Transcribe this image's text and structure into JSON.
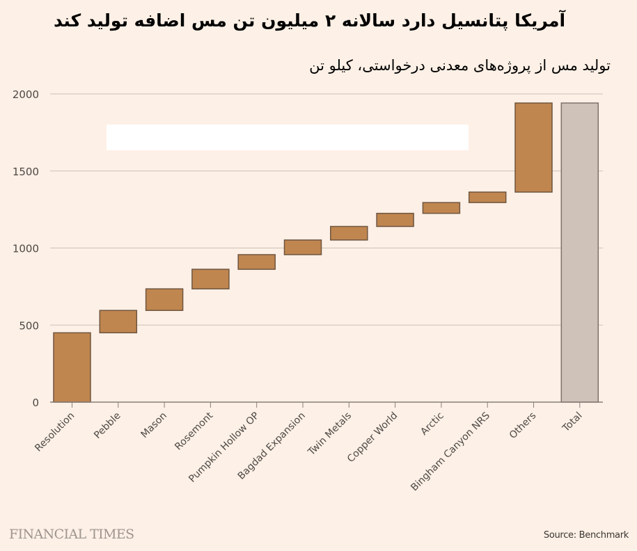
{
  "header": {
    "title": "آمریکا پتانسیل دارد سالانه ۲ میلیون تن مس اضافه تولید کند",
    "subtitle": "تولید مس از پروژه‌های معدنی درخواستی، کیلو تن"
  },
  "footer": {
    "logo": "FINANCIAL TIMES",
    "source": "Source: Benchmark"
  },
  "colors": {
    "background": "#fdf0e6",
    "bar_fill": "#c0864f",
    "bar_stroke": "#6e5540",
    "total_fill": "#cfc2b9",
    "total_stroke": "#7d716b",
    "gridline": "#cdbfb4",
    "axis": "#8a7f78"
  },
  "chart_data": {
    "type": "waterfall",
    "title": "آمریکا پتانسیل دارد سالانه ۲ میلیون تن مس اضافه تولید کند",
    "subtitle": "تولید مس از پروژه‌های معدنی درخواستی، کیلو تن",
    "xlabel": "",
    "ylabel": "",
    "ylim": [
      0,
      2000
    ],
    "yticks": [
      0,
      500,
      1000,
      1500,
      2000
    ],
    "grid": true,
    "legend": null,
    "categories": [
      "Resolution",
      "Pebble",
      "Mason",
      "Rosemont",
      "Pumpkin Hollow OP",
      "Bagdad Expansion",
      "Twin Metals",
      "Copper World",
      "Arctic",
      "Bingham Canyon NRS",
      "Others",
      "Total"
    ],
    "values": [
      450,
      145,
      140,
      127,
      95,
      95,
      88,
      85,
      70,
      68,
      578,
      1941
    ],
    "bars": [
      {
        "label": "Resolution",
        "start": 0,
        "end": 450
      },
      {
        "label": "Pebble",
        "start": 450,
        "end": 595
      },
      {
        "label": "Mason",
        "start": 595,
        "end": 735
      },
      {
        "label": "Rosemont",
        "start": 735,
        "end": 862
      },
      {
        "label": "Pumpkin Hollow OP",
        "start": 862,
        "end": 957
      },
      {
        "label": "Bagdad Expansion",
        "start": 957,
        "end": 1052
      },
      {
        "label": "Twin Metals",
        "start": 1052,
        "end": 1140
      },
      {
        "label": "Copper World",
        "start": 1140,
        "end": 1225
      },
      {
        "label": "Arctic",
        "start": 1225,
        "end": 1295
      },
      {
        "label": "Bingham Canyon NRS",
        "start": 1295,
        "end": 1363
      },
      {
        "label": "Others",
        "start": 1363,
        "end": 1941
      },
      {
        "label": "Total",
        "start": 0,
        "end": 1941,
        "is_total": true
      }
    ],
    "source": "Source: Benchmark"
  }
}
